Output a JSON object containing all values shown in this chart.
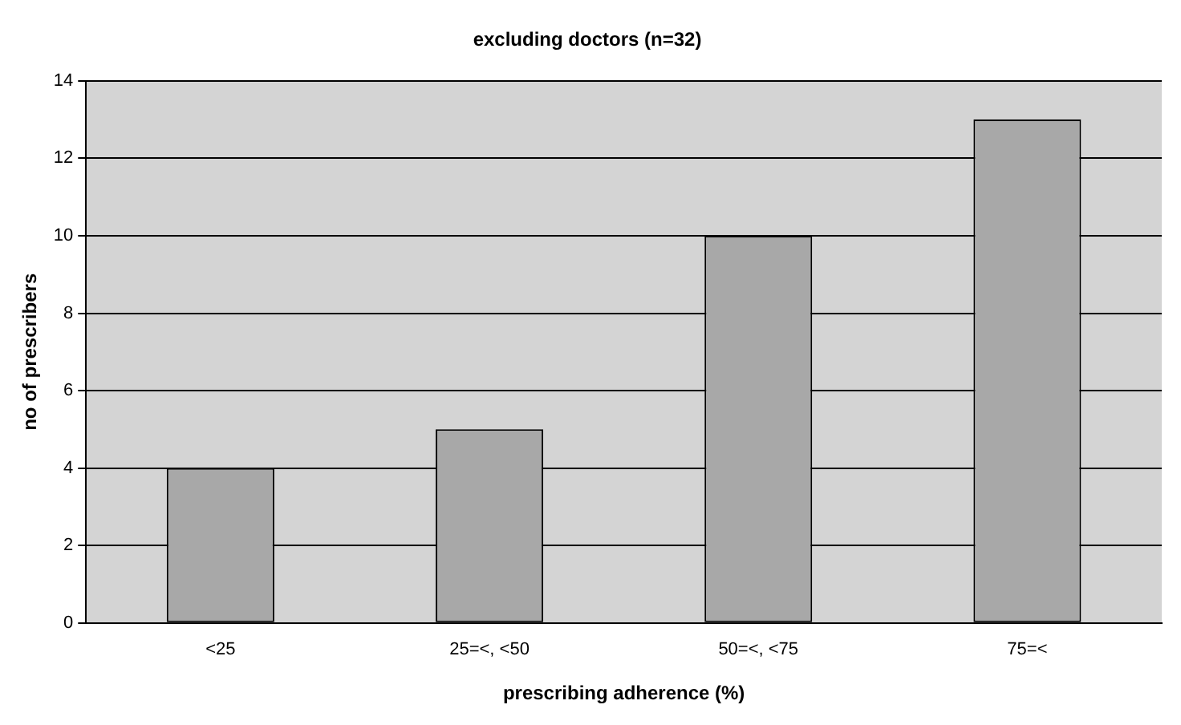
{
  "chart_data": {
    "type": "bar",
    "title": "excluding doctors (n=32)",
    "xlabel": "prescribing adherence (%)",
    "ylabel": "no of prescribers",
    "categories": [
      "<25",
      "25=<, <50",
      "50=<, <75",
      "75=<"
    ],
    "values": [
      4,
      5,
      10,
      13
    ],
    "color": "#a8a8a8",
    "ylim": [
      0,
      14
    ],
    "yticks": [
      0,
      2,
      4,
      6,
      8,
      10,
      12,
      14
    ],
    "grid": "y",
    "legend": false
  }
}
